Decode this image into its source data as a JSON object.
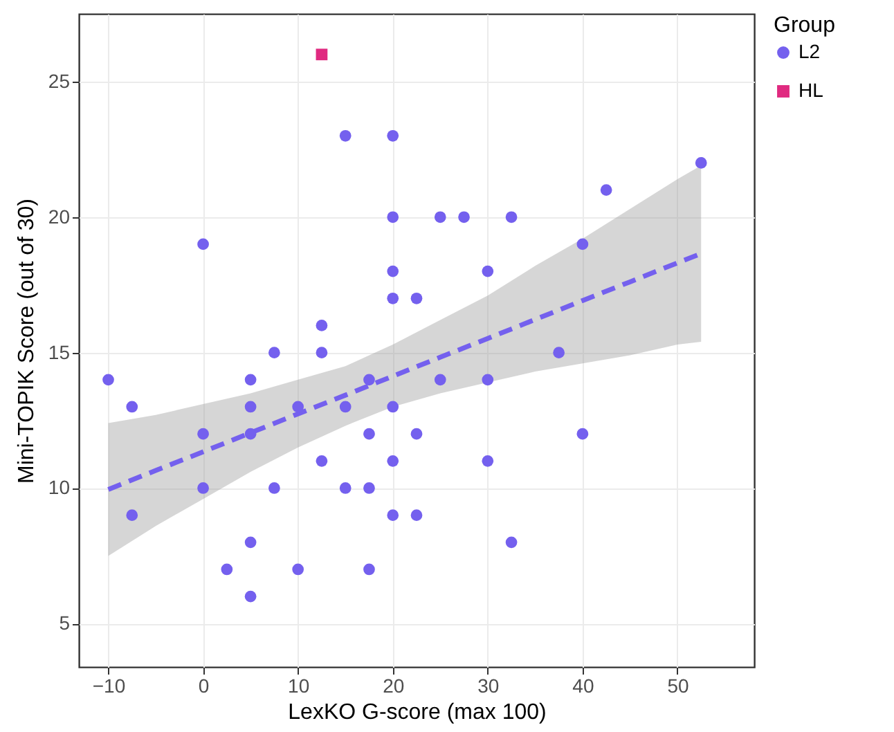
{
  "chart_data": {
    "type": "scatter",
    "xlabel": "LexKO G-score (max 100)",
    "ylabel": "Mini-TOPIK Score (out of 30)",
    "legend_title": "Group",
    "xlim": [
      -13.1,
      58.1
    ],
    "ylim": [
      3.4,
      27.5
    ],
    "xticks": [
      -10,
      0,
      10,
      20,
      30,
      40,
      50
    ],
    "yticks": [
      5,
      10,
      15,
      20,
      25
    ],
    "grid": true,
    "legend": "right",
    "series": [
      {
        "name": "L2",
        "color": "#7460ee",
        "marker": "circle",
        "x": [
          -10,
          -7.5,
          -7.5,
          0,
          0,
          0,
          2.5,
          5,
          5,
          5,
          5,
          5,
          7.5,
          7.5,
          10,
          10,
          12.5,
          12.5,
          12.5,
          15,
          15,
          15,
          17.5,
          17.5,
          17.5,
          17.5,
          20,
          20,
          20,
          20,
          20,
          20,
          20,
          22.5,
          22.5,
          22.5,
          25,
          25,
          27.5,
          30,
          30,
          30,
          32.5,
          32.5,
          37.5,
          40,
          40,
          42.5,
          52.5
        ],
        "values": [
          14,
          13,
          9,
          19,
          12,
          10,
          7,
          14,
          13,
          12,
          8,
          6,
          15,
          10,
          13,
          7,
          16,
          15,
          11,
          23,
          13,
          10,
          14,
          12,
          10,
          7,
          23,
          20,
          18,
          17,
          13,
          11,
          9,
          17,
          12,
          9,
          20,
          14,
          20,
          18,
          14,
          11,
          20,
          8,
          15,
          19,
          12,
          21,
          22
        ]
      },
      {
        "name": "HL",
        "color": "#e02a80",
        "marker": "square",
        "x": [
          12.5
        ],
        "values": [
          26
        ]
      },
      {
        "type": "line",
        "color": "#7460ee",
        "line_style": "dashed",
        "x": [
          -10,
          -5,
          0,
          5,
          10,
          15,
          20,
          25,
          30,
          35,
          40,
          45,
          50,
          52.5
        ],
        "values": [
          9.95,
          10.65,
          11.34,
          12.04,
          12.74,
          13.43,
          14.13,
          14.83,
          15.52,
          16.22,
          16.92,
          17.61,
          18.31,
          18.65
        ],
        "lower": [
          7.5,
          8.6,
          9.6,
          10.6,
          11.5,
          12.3,
          13.0,
          13.5,
          13.9,
          14.3,
          14.6,
          14.9,
          15.3,
          15.4
        ],
        "upper": [
          12.4,
          12.7,
          13.1,
          13.5,
          14.0,
          14.5,
          15.3,
          16.2,
          17.1,
          18.2,
          19.2,
          20.3,
          21.4,
          21.9
        ]
      }
    ]
  }
}
